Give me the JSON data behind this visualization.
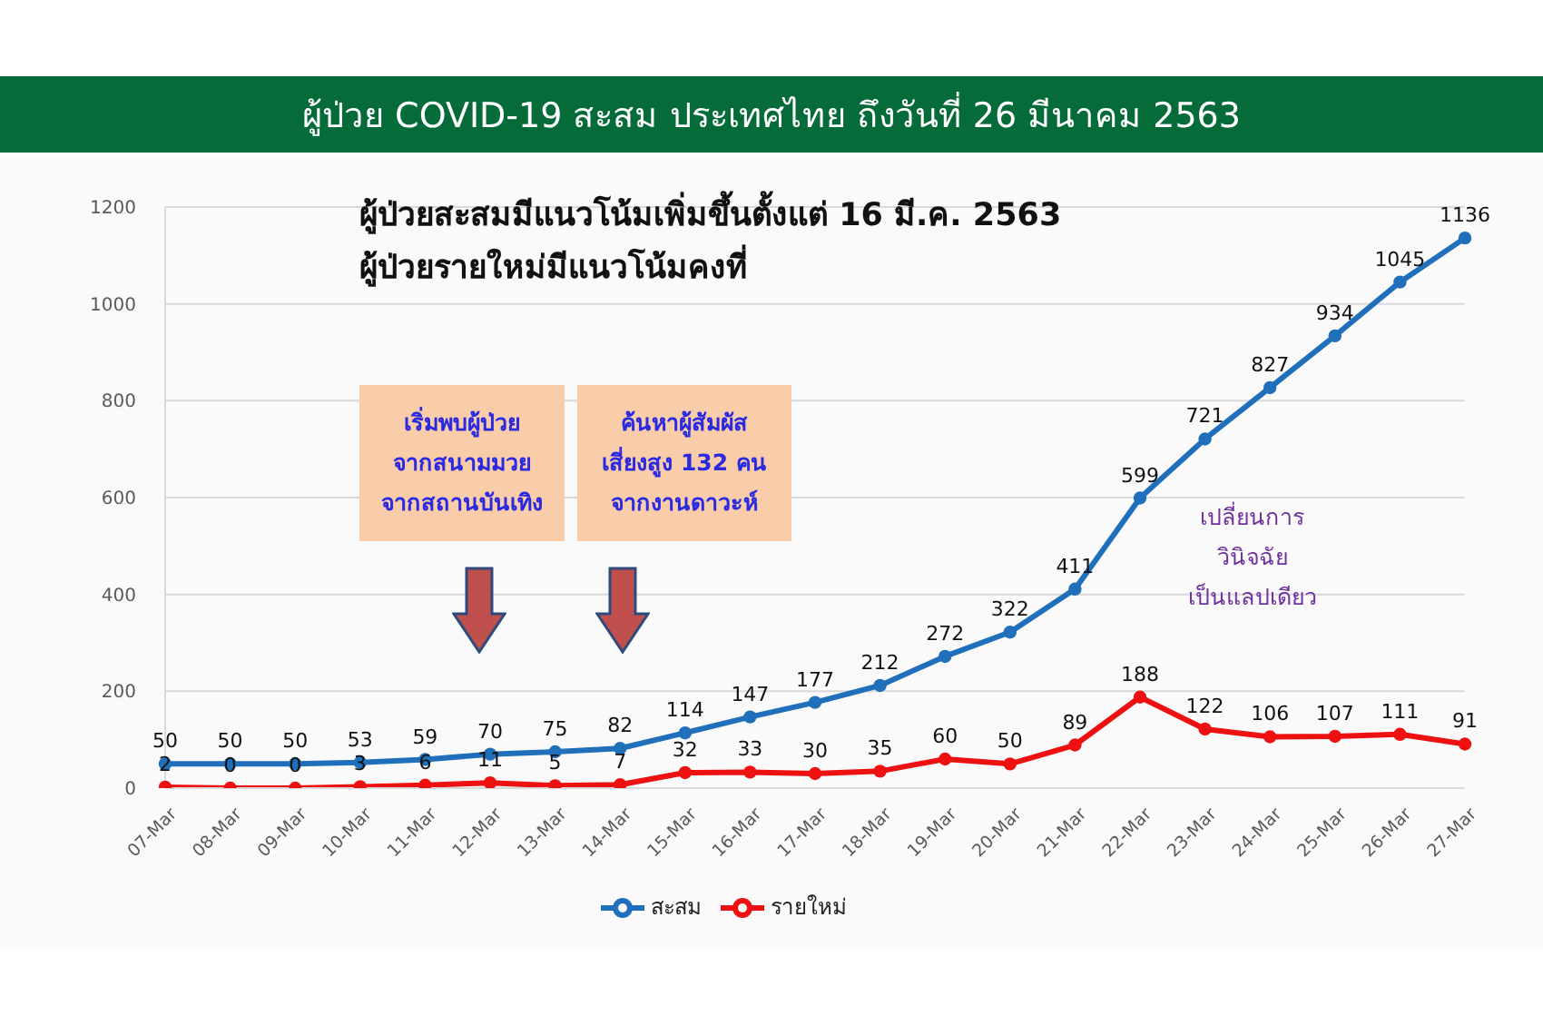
{
  "chart_data": {
    "type": "line",
    "title": "ผู้ป่วย COVID-19 สะสม ประเทศไทย ถึงวันที่ 26 มีนาคม 2563",
    "annotations": [
      "ผู้ป่วยสะสมมีแนวโน้มเพิ่มขึ้นตั้งแต่ 16 มี.ค. 2563",
      "ผู้ป่วยรายใหม่มีแนวโน้มคงที่",
      "เริ่มพบผู้ป่วย\nจากสนามมวย\nจากสถานบันเทิง",
      "ค้นหาผู้สัมผัส\nเสี่ยงสูง 132 คน\nจากงานดาวะห์",
      "เปลี่ยนการ\nวินิจฉัย\nเป็นแลปเดียว"
    ],
    "categories": [
      "07-Mar",
      "08-Mar",
      "09-Mar",
      "10-Mar",
      "11-Mar",
      "12-Mar",
      "13-Mar",
      "14-Mar",
      "15-Mar",
      "16-Mar",
      "17-Mar",
      "18-Mar",
      "19-Mar",
      "20-Mar",
      "21-Mar",
      "22-Mar",
      "23-Mar",
      "24-Mar",
      "25-Mar",
      "26-Mar",
      "27-Mar"
    ],
    "series": [
      {
        "name": "สะสม",
        "color": "#1f6fba",
        "values": [
          50,
          50,
          50,
          53,
          59,
          70,
          75,
          82,
          114,
          147,
          177,
          212,
          272,
          322,
          411,
          599,
          721,
          827,
          934,
          1045,
          1136
        ]
      },
      {
        "name": "รายใหม่",
        "color": "#ee1111",
        "values": [
          2,
          0,
          0,
          3,
          6,
          11,
          5,
          7,
          32,
          33,
          30,
          35,
          60,
          50,
          89,
          188,
          122,
          106,
          107,
          111,
          91
        ]
      }
    ],
    "ylim": [
      0,
      1200
    ],
    "yticks": [
      0,
      200,
      400,
      600,
      800,
      1000,
      1200
    ],
    "grid": "y",
    "legend": "bottom",
    "marker": "circle",
    "line_style": "solid",
    "data_labels": true
  }
}
